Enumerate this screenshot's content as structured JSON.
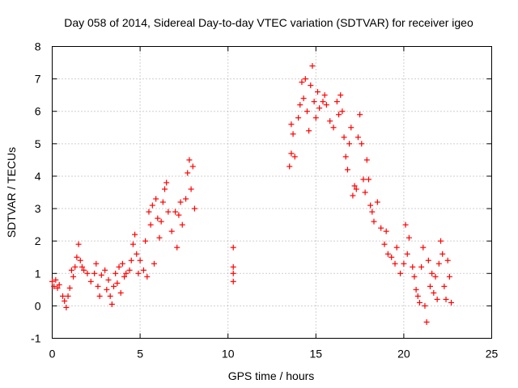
{
  "chart_data": {
    "type": "scatter",
    "title": "Day 058 of 2014, Sidereal Day-to-day VTEC variation (SDTVAR) for receiver igeo",
    "xlabel": "GPS time / hours",
    "ylabel": "SDTVAR / TECUs",
    "xlim": [
      0,
      25
    ],
    "ylim": [
      -1,
      8
    ],
    "xticks": [
      "0",
      "5",
      "10",
      "15",
      "20",
      "25"
    ],
    "yticks": [
      "-1",
      "0",
      "1",
      "2",
      "3",
      "4",
      "5",
      "6",
      "7",
      "8"
    ],
    "xtick_values": [
      0,
      5,
      10,
      15,
      20,
      25
    ],
    "ytick_values": [
      -1,
      0,
      1,
      2,
      3,
      4,
      5,
      6,
      7,
      8
    ],
    "grid": true,
    "marker": "+",
    "marker_color": "#ff0000",
    "series": [
      {
        "name": "SDTVAR",
        "description_of_trend": "sampled points",
        "points": [
          [
            0.0,
            0.75
          ],
          [
            0.1,
            0.6
          ],
          [
            0.2,
            0.8
          ],
          [
            0.3,
            0.55
          ],
          [
            0.4,
            0.65
          ],
          [
            0.6,
            0.3
          ],
          [
            0.7,
            0.15
          ],
          [
            0.8,
            -0.05
          ],
          [
            0.9,
            0.3
          ],
          [
            1.0,
            0.55
          ],
          [
            1.1,
            1.1
          ],
          [
            1.2,
            0.9
          ],
          [
            1.3,
            1.2
          ],
          [
            1.4,
            1.5
          ],
          [
            1.5,
            1.9
          ],
          [
            1.6,
            1.4
          ],
          [
            1.7,
            1.2
          ],
          [
            1.8,
            1.1
          ],
          [
            2.0,
            1.0
          ],
          [
            2.2,
            0.75
          ],
          [
            2.4,
            1.0
          ],
          [
            2.5,
            1.3
          ],
          [
            2.6,
            0.6
          ],
          [
            2.7,
            0.3
          ],
          [
            2.8,
            0.95
          ],
          [
            3.0,
            1.1
          ],
          [
            3.1,
            0.5
          ],
          [
            3.2,
            0.8
          ],
          [
            3.3,
            0.3
          ],
          [
            3.4,
            0.05
          ],
          [
            3.5,
            0.6
          ],
          [
            3.6,
            1.0
          ],
          [
            3.7,
            0.7
          ],
          [
            3.8,
            1.2
          ],
          [
            3.9,
            0.4
          ],
          [
            4.0,
            1.3
          ],
          [
            4.1,
            0.9
          ],
          [
            4.2,
            1.0
          ],
          [
            4.4,
            1.1
          ],
          [
            4.5,
            1.4
          ],
          [
            4.6,
            1.9
          ],
          [
            4.7,
            2.2
          ],
          [
            4.8,
            1.6
          ],
          [
            4.9,
            1.0
          ],
          [
            5.0,
            1.4
          ],
          [
            5.2,
            1.1
          ],
          [
            5.3,
            2.0
          ],
          [
            5.4,
            0.9
          ],
          [
            5.5,
            2.9
          ],
          [
            5.6,
            2.5
          ],
          [
            5.7,
            3.1
          ],
          [
            5.8,
            1.3
          ],
          [
            5.9,
            3.3
          ],
          [
            6.0,
            2.7
          ],
          [
            6.1,
            2.1
          ],
          [
            6.2,
            2.6
          ],
          [
            6.3,
            3.2
          ],
          [
            6.4,
            3.6
          ],
          [
            6.5,
            3.8
          ],
          [
            6.6,
            2.9
          ],
          [
            6.8,
            2.3
          ],
          [
            7.0,
            2.9
          ],
          [
            7.1,
            1.8
          ],
          [
            7.2,
            2.8
          ],
          [
            7.3,
            3.2
          ],
          [
            7.4,
            2.5
          ],
          [
            7.6,
            3.3
          ],
          [
            7.7,
            4.1
          ],
          [
            7.8,
            4.5
          ],
          [
            7.9,
            3.6
          ],
          [
            8.0,
            4.3
          ],
          [
            8.1,
            3.0
          ],
          [
            10.3,
            1.8
          ],
          [
            10.3,
            1.2
          ],
          [
            10.3,
            1.0
          ],
          [
            10.3,
            0.75
          ],
          [
            13.5,
            4.3
          ],
          [
            13.6,
            4.7
          ],
          [
            13.6,
            5.6
          ],
          [
            13.7,
            5.3
          ],
          [
            13.8,
            4.6
          ],
          [
            14.0,
            5.8
          ],
          [
            14.1,
            6.2
          ],
          [
            14.2,
            6.9
          ],
          [
            14.3,
            6.4
          ],
          [
            14.4,
            7.0
          ],
          [
            14.5,
            6.0
          ],
          [
            14.6,
            5.4
          ],
          [
            14.7,
            6.8
          ],
          [
            14.8,
            7.4
          ],
          [
            14.9,
            6.3
          ],
          [
            15.0,
            5.8
          ],
          [
            15.1,
            6.6
          ],
          [
            15.2,
            6.1
          ],
          [
            15.4,
            6.3
          ],
          [
            15.5,
            6.5
          ],
          [
            15.6,
            6.2
          ],
          [
            15.8,
            5.7
          ],
          [
            16.0,
            5.5
          ],
          [
            16.2,
            6.3
          ],
          [
            16.3,
            5.9
          ],
          [
            16.4,
            6.5
          ],
          [
            16.5,
            6.0
          ],
          [
            16.6,
            5.2
          ],
          [
            16.7,
            4.6
          ],
          [
            16.8,
            4.2
          ],
          [
            16.9,
            5.0
          ],
          [
            17.0,
            5.5
          ],
          [
            17.1,
            3.4
          ],
          [
            17.2,
            3.7
          ],
          [
            17.3,
            3.6
          ],
          [
            17.4,
            5.2
          ],
          [
            17.5,
            5.9
          ],
          [
            17.6,
            5.0
          ],
          [
            17.7,
            3.9
          ],
          [
            17.8,
            3.5
          ],
          [
            17.9,
            4.5
          ],
          [
            18.0,
            3.9
          ],
          [
            18.1,
            3.1
          ],
          [
            18.2,
            2.9
          ],
          [
            18.3,
            2.6
          ],
          [
            18.5,
            3.2
          ],
          [
            18.7,
            2.4
          ],
          [
            18.9,
            1.9
          ],
          [
            19.0,
            2.3
          ],
          [
            19.1,
            1.6
          ],
          [
            19.3,
            1.5
          ],
          [
            19.5,
            1.3
          ],
          [
            19.6,
            1.8
          ],
          [
            19.8,
            1.0
          ],
          [
            20.0,
            1.3
          ],
          [
            20.1,
            2.5
          ],
          [
            20.2,
            1.6
          ],
          [
            20.3,
            2.1
          ],
          [
            20.5,
            1.2
          ],
          [
            20.6,
            0.9
          ],
          [
            20.7,
            0.5
          ],
          [
            20.8,
            0.3
          ],
          [
            20.9,
            0.1
          ],
          [
            21.0,
            1.2
          ],
          [
            21.1,
            1.8
          ],
          [
            21.2,
            0.0
          ],
          [
            21.3,
            -0.5
          ],
          [
            21.4,
            1.4
          ],
          [
            21.5,
            0.6
          ],
          [
            21.6,
            1.0
          ],
          [
            21.7,
            0.4
          ],
          [
            21.8,
            0.9
          ],
          [
            21.9,
            0.2
          ],
          [
            22.0,
            1.3
          ],
          [
            22.1,
            2.0
          ],
          [
            22.2,
            1.6
          ],
          [
            22.3,
            0.6
          ],
          [
            22.4,
            0.2
          ],
          [
            22.5,
            1.4
          ],
          [
            22.6,
            0.9
          ],
          [
            22.7,
            0.1
          ]
        ]
      }
    ]
  }
}
